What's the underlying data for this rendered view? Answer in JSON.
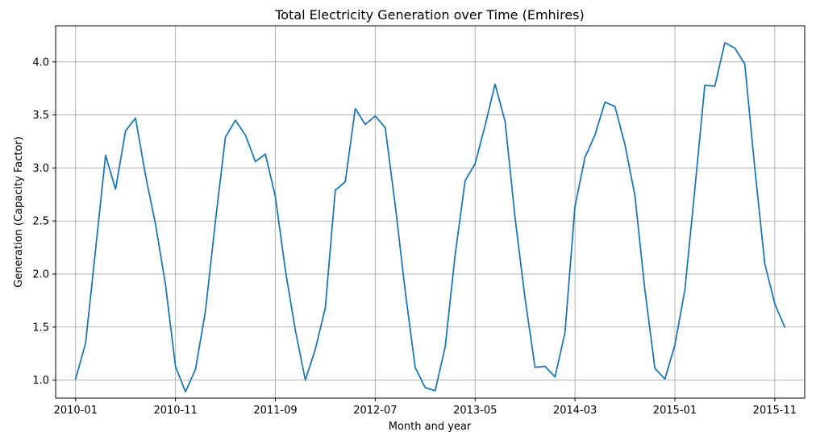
{
  "chart_data": {
    "type": "line",
    "title": "Total Electricity Generation over Time (Emhires)",
    "xlabel": "Month and year",
    "ylabel": "Generation (Capacity Factor)",
    "x_start": "2010-01",
    "x_tick_labels": [
      "2010-01",
      "2010-11",
      "2011-09",
      "2012-07",
      "2013-05",
      "2014-03",
      "2015-01",
      "2015-11"
    ],
    "y_ticks": [
      1.0,
      1.5,
      2.0,
      2.5,
      3.0,
      3.5,
      4.0
    ],
    "y_tick_labels": [
      "1.0",
      "1.5",
      "2.0",
      "2.5",
      "3.0",
      "3.5",
      "4.0"
    ],
    "xlim": [
      "2009-11",
      "2016-02"
    ],
    "ylim": [
      0.83,
      4.34
    ],
    "grid": true,
    "color": "#1f77b4",
    "series": [
      {
        "x": [
          "2010-01",
          "2010-02",
          "2010-03",
          "2010-04",
          "2010-05",
          "2010-06",
          "2010-07",
          "2010-08",
          "2010-09",
          "2010-10",
          "2010-11",
          "2010-12",
          "2011-01",
          "2011-02",
          "2011-03",
          "2011-04",
          "2011-05",
          "2011-06",
          "2011-07",
          "2011-08",
          "2011-09",
          "2011-10",
          "2011-11",
          "2011-12",
          "2012-01",
          "2012-02",
          "2012-03",
          "2012-04",
          "2012-05",
          "2012-06",
          "2012-07",
          "2012-08",
          "2012-09",
          "2012-10",
          "2012-11",
          "2012-12",
          "2013-01",
          "2013-02",
          "2013-03",
          "2013-04",
          "2013-05",
          "2013-06",
          "2013-07",
          "2013-08",
          "2013-09",
          "2013-10",
          "2013-11",
          "2013-12",
          "2014-01",
          "2014-02",
          "2014-03",
          "2014-04",
          "2014-05",
          "2014-06",
          "2014-07",
          "2014-08",
          "2014-09",
          "2014-10",
          "2014-11",
          "2014-12",
          "2015-01",
          "2015-02",
          "2015-03",
          "2015-04",
          "2015-05",
          "2015-06",
          "2015-07",
          "2015-08",
          "2015-09",
          "2015-10",
          "2015-11",
          "2015-12"
        ],
        "y": [
          1.01,
          1.35,
          2.23,
          3.12,
          2.8,
          3.35,
          3.47,
          2.93,
          2.47,
          1.9,
          1.13,
          0.89,
          1.1,
          1.65,
          2.5,
          3.29,
          3.45,
          3.31,
          3.06,
          3.13,
          2.73,
          2.04,
          1.47,
          1.0,
          1.29,
          1.68,
          2.79,
          2.87,
          3.56,
          3.41,
          3.49,
          3.38,
          2.65,
          1.84,
          1.12,
          0.93,
          0.9,
          1.31,
          2.18,
          2.88,
          3.04,
          3.4,
          3.79,
          3.44,
          2.53,
          1.77,
          1.12,
          1.13,
          1.03,
          1.45,
          2.64,
          3.1,
          3.31,
          3.62,
          3.58,
          3.22,
          2.74,
          1.85,
          1.11,
          1.01,
          1.33,
          1.85,
          2.8,
          3.78,
          3.77,
          4.18,
          4.13,
          3.98,
          3.0,
          2.1,
          1.72,
          1.5
        ]
      }
    ]
  }
}
